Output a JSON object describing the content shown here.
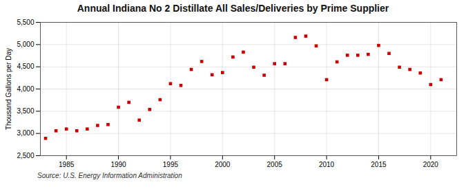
{
  "chart_data": {
    "type": "scatter",
    "title": "Annual Indiana No 2 Distillate All Sales/Deliveries by Prime Supplier",
    "ylabel": "Thousand Gallons per Day",
    "source": "Source: U.S. Energy Information Administration",
    "x": [
      1983,
      1984,
      1985,
      1986,
      1987,
      1988,
      1989,
      1990,
      1991,
      1992,
      1993,
      1994,
      1995,
      1996,
      1997,
      1998,
      1999,
      2000,
      2001,
      2002,
      2003,
      2004,
      2005,
      2006,
      2007,
      2008,
      2009,
      2010,
      2011,
      2012,
      2013,
      2014,
      2015,
      2016,
      2017,
      2018,
      2019,
      2020,
      2021
    ],
    "values": [
      2890,
      3060,
      3100,
      3060,
      3100,
      3180,
      3200,
      3590,
      3700,
      3300,
      3540,
      3760,
      4120,
      4080,
      4440,
      4620,
      4320,
      4370,
      4720,
      4830,
      4490,
      4310,
      4570,
      4570,
      5160,
      5190,
      4970,
      4210,
      4610,
      4760,
      4760,
      4780,
      4980,
      4800,
      4490,
      4440,
      4360,
      4100,
      4210
    ],
    "color": "#cc0000",
    "marker": "square",
    "xlim": [
      1982.5,
      2022.5
    ],
    "xticks": [
      1985,
      1990,
      1995,
      2000,
      2005,
      2010,
      2015,
      2020
    ],
    "ylim": [
      2500,
      5500
    ],
    "yticks": [
      {
        "value": 2500,
        "label": "2,500"
      },
      {
        "value": 3000,
        "label": "3,000"
      },
      {
        "value": 3500,
        "label": "3,500"
      },
      {
        "value": 4000,
        "label": "4,000"
      },
      {
        "value": 4500,
        "label": "4,500"
      },
      {
        "value": 5000,
        "label": "5,000"
      },
      {
        "value": 5500,
        "label": "5,500"
      }
    ],
    "grid": true
  }
}
